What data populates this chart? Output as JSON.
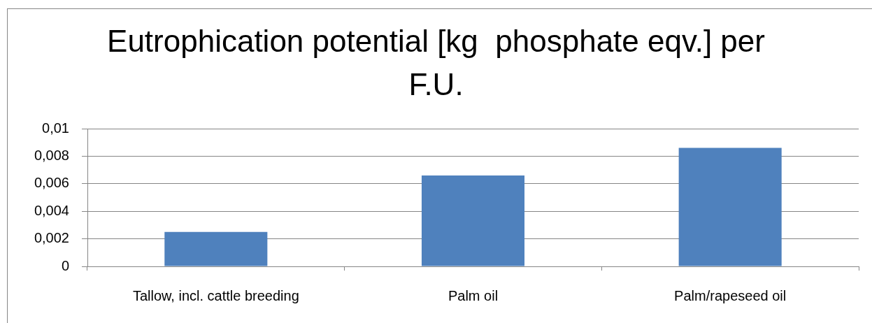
{
  "chart_data": {
    "type": "bar",
    "title": "Eutrophication potential [kg  phosphate eqv.] per F.U.",
    "categories": [
      "Tallow, incl. cattle breeding",
      "Palm oil",
      "Palm/rapeseed oil"
    ],
    "values": [
      0.0025,
      0.0066,
      0.0086
    ],
    "color": "#4f81bd",
    "ylim": [
      0,
      0.01
    ],
    "yticks": [
      0,
      {
        "value": 0.002,
        "label": "0,002"
      },
      {
        "value": 0.004,
        "label": "0,004"
      },
      {
        "value": 0.006,
        "label": "0,006"
      },
      {
        "value": 0.008,
        "label": "0,008"
      },
      {
        "value": 0.01,
        "label": "0,01"
      }
    ],
    "grid": "y"
  }
}
